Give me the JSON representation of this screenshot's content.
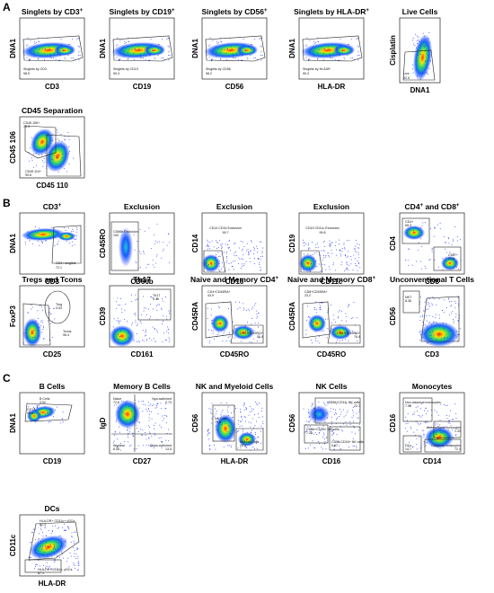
{
  "figure": {
    "panel_labels": [
      "A",
      "B",
      "C"
    ],
    "plots": [
      {
        "id": "a1",
        "title": "Singlets by CD3",
        "title_sup": "+",
        "xlabel": "CD3",
        "ylabel": "DNA1",
        "gate_labels": [
          "Singlets by CD3",
          "98.9"
        ]
      },
      {
        "id": "a2",
        "title": "Singlets by CD19",
        "title_sup": "+",
        "xlabel": "CD19",
        "ylabel": "DNA1",
        "gate_labels": [
          "Singlets by CD19",
          "99.3"
        ]
      },
      {
        "id": "a3",
        "title": "Singlets by CD56",
        "title_sup": "+",
        "xlabel": "CD56",
        "ylabel": "DNA1",
        "gate_labels": [
          "Singlets by CD56",
          "98.2"
        ]
      },
      {
        "id": "a4",
        "title": "Singlets by HLA-DR",
        "title_sup": "+",
        "xlabel": "HLA-DR",
        "ylabel": "DNA1",
        "gate_labels": [
          "Singlets by HLADR",
          "99.3"
        ]
      },
      {
        "id": "a5",
        "title": "Live Cells",
        "title_sup": "",
        "xlabel": "DNA1",
        "ylabel": "Cisplatin",
        "gate_labels": [
          "Live",
          "92.5"
        ]
      },
      {
        "id": "a6",
        "title": "CD45 Separation",
        "title_sup": "",
        "xlabel": "CD45 110",
        "ylabel": "CD45 106",
        "gate_labels": [
          "CD45 106+",
          "76.3",
          "CD45 110+",
          "99.6"
        ]
      },
      {
        "id": "b1",
        "title": "CD3",
        "title_sup": "+",
        "xlabel": "CD3",
        "ylabel": "DNA1",
        "gate_labels": [
          "CD3+ singlets",
          "72.1"
        ]
      },
      {
        "id": "b2",
        "title": "Exclusion",
        "title_sup": "",
        "xlabel": "CD66b",
        "ylabel": "CD45RO",
        "gate_labels": [
          "CD66b Exclusion",
          "100"
        ]
      },
      {
        "id": "b3",
        "title": "Exclusion",
        "title_sup": "",
        "xlabel": "CD16",
        "ylabel": "CD14",
        "gate_labels": [
          "CD14 CD16 Exclusion",
          "99.7"
        ]
      },
      {
        "id": "b4",
        "title": "Exclusion",
        "title_sup": "",
        "xlabel": "CD11c",
        "ylabel": "CD19",
        "gate_labels": [
          "CD19 CD11c Exclusion",
          "99.8"
        ]
      },
      {
        "id": "b5",
        "title": "CD4",
        "title_sup": "+",
        "title_rest": " and CD8",
        "title_sup2": "+",
        "xlabel": "CD8",
        "ylabel": "CD4",
        "gate_labels": [
          "CD4+",
          "65.3",
          "CD8+",
          "27.9"
        ]
      },
      {
        "id": "b6",
        "title": "Tregs and Tcons",
        "title_sup": "",
        "xlabel": "CD25",
        "ylabel": "FoxP3",
        "gate_labels": [
          "Treg",
          "3.53",
          "Tcons",
          "96.4"
        ]
      },
      {
        "id": "b7",
        "title": "Th17",
        "title_sup": "",
        "xlabel": "CD161",
        "ylabel": "CD39",
        "gate_labels": [
          "Th17",
          "0.36"
        ]
      },
      {
        "id": "b8",
        "title": "Naive and Memory CD4",
        "title_sup": "+",
        "xlabel": "CD45RO",
        "ylabel": "CD45RA",
        "gate_labels": [
          "CD4+CD45RA+",
          "43.9",
          "CD4+CD45RO+",
          "54.4"
        ]
      },
      {
        "id": "b9",
        "title": "Naive and Memory CD8",
        "title_sup": "+",
        "xlabel": "CD45RO",
        "ylabel": "CD45RA",
        "gate_labels": [
          "CD8+CD45RA+",
          "23.2",
          "CD8+CD45RO+",
          "76.4"
        ]
      },
      {
        "id": "b10",
        "title": "Unconventional T Cells",
        "title_sup": "",
        "xlabel": "CD3",
        "ylabel": "CD56",
        "gate_labels": [
          "NKT",
          "8.36"
        ]
      },
      {
        "id": "c1",
        "title": "B Cells",
        "title_sup": "",
        "xlabel": "CD19",
        "ylabel": "DNA1",
        "gate_labels": [
          "B Cells",
          "3.92",
          "CD19-",
          "95.4"
        ]
      },
      {
        "id": "c2",
        "title": "Memory B Cells",
        "title_sup": "",
        "xlabel": "CD27",
        "ylabel": "IgD",
        "gate_labels": [
          "Naive",
          "72.6",
          "Non-switched",
          "7.74",
          "Atypical",
          "6.06",
          "Class-switched",
          "13.5"
        ]
      },
      {
        "id": "c3",
        "title": "NK and Myeloid Cells",
        "title_sup": "",
        "xlabel": "HLA-DR",
        "ylabel": "CD56",
        "gate_labels": [
          "NK Cells",
          "79.6",
          "Myeloid Cells",
          "20.5"
        ]
      },
      {
        "id": "c4",
        "title": "NK Cells",
        "title_sup": "",
        "xlabel": "CD16",
        "ylabel": "CD56",
        "gate_labels": [
          "CD56+CD16- NK cells",
          "22.7",
          "CD56+CD16+ NK cells",
          "7.25",
          "CD56-CD16+ NK cells",
          "0.67"
        ]
      },
      {
        "id": "c5",
        "title": "Monocytes",
        "title_sup": "",
        "xlabel": "CD14",
        "ylabel": "CD16",
        "gate_labels": [
          "Non-classical monocytes",
          "7.56",
          "Intermediate monocytes",
          "1.33",
          "DCs",
          "14.7",
          "Classical monocytes",
          "72.3"
        ]
      },
      {
        "id": "c6",
        "title": "DCs",
        "title_sup": "",
        "xlabel": "HLA-DR",
        "ylabel": "CD11c",
        "gate_labels": [
          "HLA-DR+ CD11c+ cDCs",
          "92.3",
          "HLA-DR+ CD11c- pDCs",
          "87.1"
        ]
      }
    ]
  }
}
